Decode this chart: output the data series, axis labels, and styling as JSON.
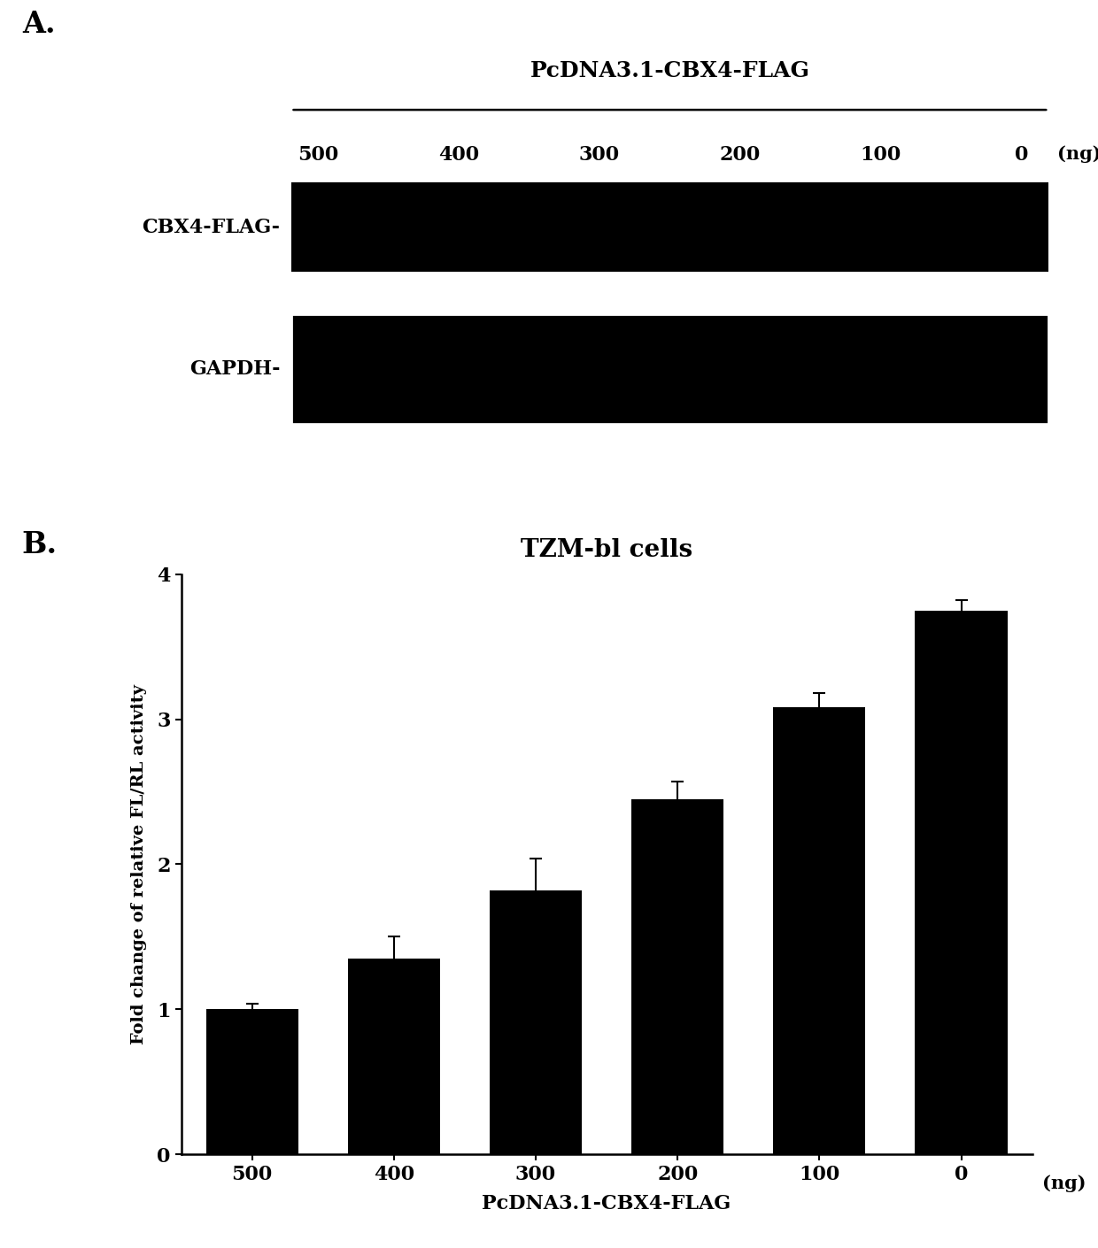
{
  "panel_a_label": "A.",
  "panel_b_label": "B.",
  "top_label": "PcDNA3.1-CBX4-FLAG",
  "ng_label": "(ng)",
  "concentrations": [
    "500",
    "400",
    "300",
    "200",
    "100",
    "0"
  ],
  "cbx4_row_label": "CBX4-FLAG-",
  "gapdh_row_label": "GAPDH-",
  "bar_values": [
    1.0,
    1.35,
    1.82,
    2.45,
    3.08,
    3.75
  ],
  "bar_errors": [
    0.04,
    0.15,
    0.22,
    0.12,
    0.1,
    0.07
  ],
  "bar_color": "#000000",
  "chart_title": "TZM-bl cells",
  "xlabel": "PcDNA3.1-CBX4-FLAG",
  "ylabel": "Fold change of relative FL/RL activity",
  "ylim": [
    0,
    4
  ],
  "yticks": [
    0,
    1,
    2,
    3,
    4
  ],
  "background_color": "#ffffff",
  "bar_width": 0.65
}
